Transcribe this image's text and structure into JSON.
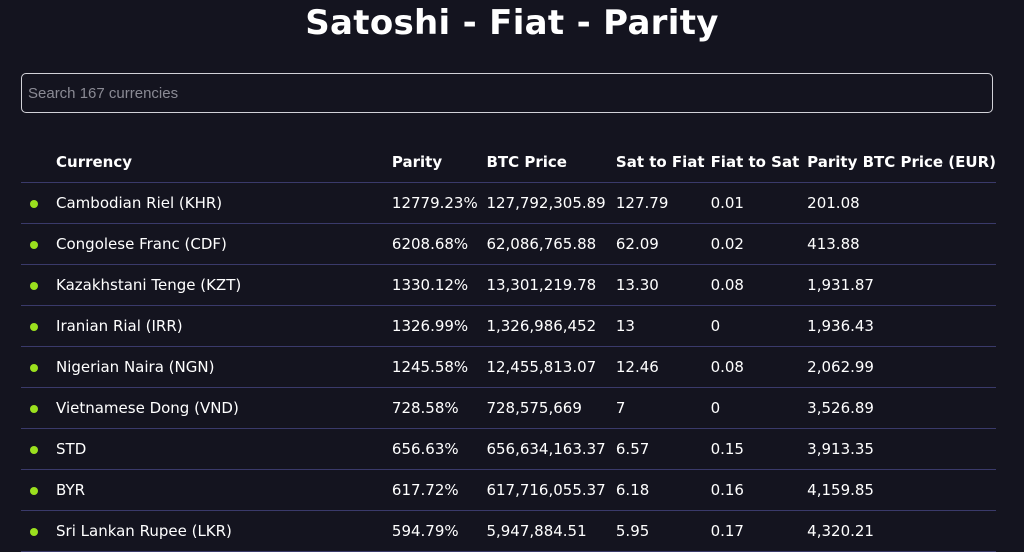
{
  "header": {
    "title": "Satoshi - Fiat - Parity"
  },
  "search": {
    "placeholder": "Search 167 currencies",
    "value": ""
  },
  "table": {
    "columns": [
      "Currency",
      "Parity",
      "BTC Price",
      "Sat to Fiat",
      "Fiat to Sat",
      "Parity BTC Price (EUR)"
    ],
    "status_color": "#9be01e",
    "rows": [
      {
        "currency": "Cambodian Riel (KHR)",
        "parity": "12779.23%",
        "btc_price": "127,792,305.89",
        "sat_to_fiat": "127.79",
        "fiat_to_sat": "0.01",
        "parity_btc_eur": "201.08"
      },
      {
        "currency": "Congolese Franc (CDF)",
        "parity": "6208.68%",
        "btc_price": "62,086,765.88",
        "sat_to_fiat": "62.09",
        "fiat_to_sat": "0.02",
        "parity_btc_eur": "413.88"
      },
      {
        "currency": "Kazakhstani Tenge (KZT)",
        "parity": "1330.12%",
        "btc_price": "13,301,219.78",
        "sat_to_fiat": "13.30",
        "fiat_to_sat": "0.08",
        "parity_btc_eur": "1,931.87"
      },
      {
        "currency": "Iranian Rial (IRR)",
        "parity": "1326.99%",
        "btc_price": "1,326,986,452",
        "sat_to_fiat": "13",
        "fiat_to_sat": "0",
        "parity_btc_eur": "1,936.43"
      },
      {
        "currency": "Nigerian Naira (NGN)",
        "parity": "1245.58%",
        "btc_price": "12,455,813.07",
        "sat_to_fiat": "12.46",
        "fiat_to_sat": "0.08",
        "parity_btc_eur": "2,062.99"
      },
      {
        "currency": "Vietnamese Dong (VND)",
        "parity": "728.58%",
        "btc_price": "728,575,669",
        "sat_to_fiat": "7",
        "fiat_to_sat": "0",
        "parity_btc_eur": "3,526.89"
      },
      {
        "currency": "STD",
        "parity": "656.63%",
        "btc_price": "656,634,163.37",
        "sat_to_fiat": "6.57",
        "fiat_to_sat": "0.15",
        "parity_btc_eur": "3,913.35"
      },
      {
        "currency": "BYR",
        "parity": "617.72%",
        "btc_price": "617,716,055.37",
        "sat_to_fiat": "6.18",
        "fiat_to_sat": "0.16",
        "parity_btc_eur": "4,159.85"
      },
      {
        "currency": "Sri Lankan Rupee (LKR)",
        "parity": "594.79%",
        "btc_price": "5,947,884.51",
        "sat_to_fiat": "5.95",
        "fiat_to_sat": "0.17",
        "parity_btc_eur": "4,320.21"
      }
    ]
  }
}
